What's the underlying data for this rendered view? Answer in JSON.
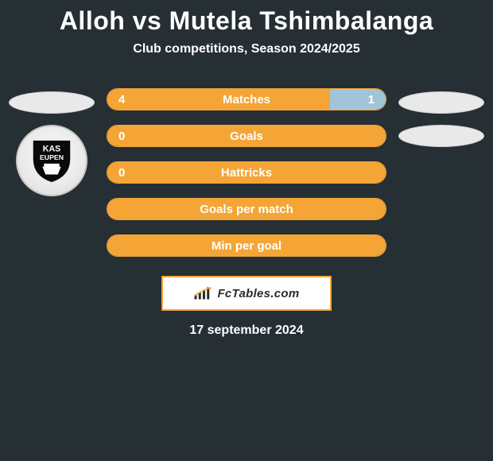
{
  "title": {
    "text": "Alloh vs Mutela Tshimbalanga",
    "fontsize": 32,
    "color": "#ffffff"
  },
  "subtitle": {
    "text": "Club competitions, Season 2024/2025",
    "fontsize": 16,
    "color": "#ffffff"
  },
  "colors": {
    "background": "#262f34",
    "bar_border": "#f4a536",
    "left_fill": "#f4a536",
    "right_fill": "#a0c4d8",
    "text": "#ffffff"
  },
  "stats_fontsize": 15,
  "stats": [
    {
      "label": "Matches",
      "left_value": "4",
      "right_value": "1",
      "left_pct": 80,
      "right_pct": 20,
      "label_color": "#ffffff"
    },
    {
      "label": "Goals",
      "left_value": "0",
      "right_value": "",
      "left_pct": 100,
      "right_pct": 0,
      "label_color": "#ffffff"
    },
    {
      "label": "Hattricks",
      "left_value": "0",
      "right_value": "",
      "left_pct": 100,
      "right_pct": 0,
      "label_color": "#ffffff"
    },
    {
      "label": "Goals per match",
      "left_value": "",
      "right_value": "",
      "left_pct": 100,
      "right_pct": 0,
      "label_color": "#ffffff"
    },
    {
      "label": "Min per goal",
      "left_value": "",
      "right_value": "",
      "left_pct": 100,
      "right_pct": 0,
      "label_color": "#ffffff"
    }
  ],
  "left_club": {
    "name": "KAS EUPEN"
  },
  "branding": {
    "text": "FcTables.com",
    "fontsize": 15
  },
  "date": {
    "text": "17 september 2024",
    "fontsize": 16
  }
}
